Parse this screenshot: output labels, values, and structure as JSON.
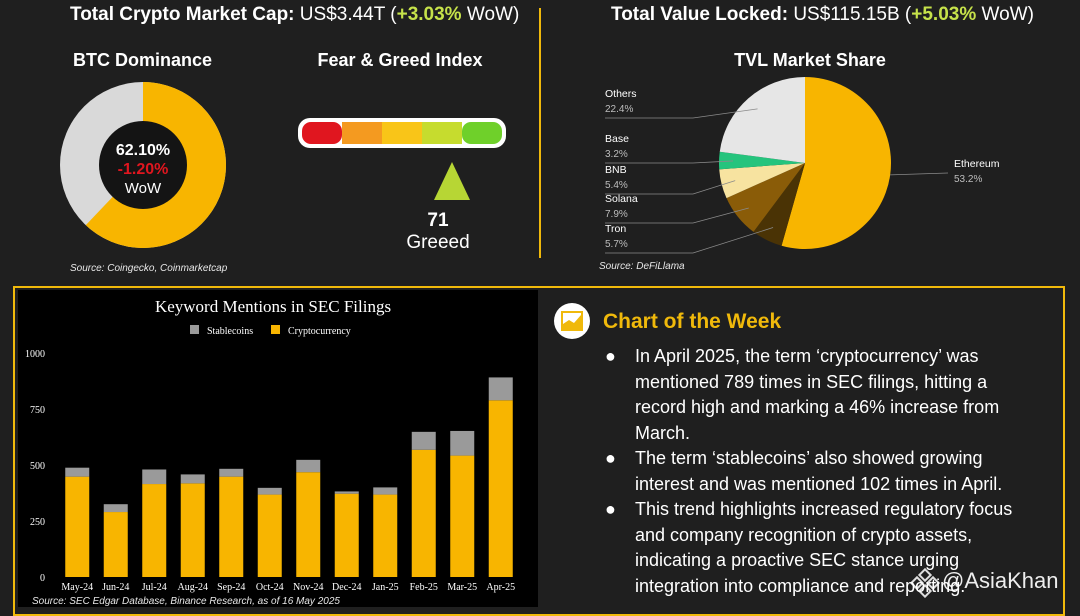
{
  "header": {
    "left": {
      "label": "Total Crypto Market Cap:",
      "value": "US$3.44T",
      "open": " (",
      "change": "+3.03%",
      "suffix": " WoW)"
    },
    "right": {
      "label": "Total Value Locked:",
      "value": "US$115.15B",
      "open": " (",
      "change": "+5.03%",
      "suffix": " WoW)"
    }
  },
  "btc_dominance": {
    "title": "BTC Dominance",
    "value": "62.10%",
    "change": "-1.20%",
    "change_label": "WoW",
    "share": 62.1
  },
  "fear_greed": {
    "title": "Fear & Greed Index",
    "value": "71",
    "label": "Greeed",
    "index": 71,
    "colors": [
      "#e0161f",
      "#f49a20",
      "#f9c518",
      "#c6dc2e",
      "#6fd02a"
    ]
  },
  "top_source_left": "Source: Coingecko, Coinmarketcap",
  "tvl_share": {
    "title": "TVL Market Share",
    "source": "Source: DeFiLlama"
  },
  "chart_of_week": {
    "title": "Chart of the Week",
    "bullets": [
      "In April 2025, the term ‘cryptocurrency’ was mentioned 789 times in SEC filings, hitting a record high and marking a 46% increase from March.",
      "The term ‘stablecoins’ also showed growing interest and was mentioned 102 times in April.",
      "This trend highlights increased regulatory focus and company recognition of crypto assets, indicating a proactive SEC stance urging integration into compliance and reporting."
    ],
    "bullet_symbol": "●"
  },
  "bottom_source": "Source: SEC Edgar Database, Binance Research, as of 16 May 2025",
  "watermark": "@AsiaKhan",
  "chart_data": [
    {
      "type": "pie",
      "title": "TVL Market Share",
      "categories": [
        "Ethereum",
        "Tron",
        "Solana",
        "BNB",
        "Base",
        "Others"
      ],
      "values": [
        53.2,
        5.7,
        7.9,
        5.4,
        3.2,
        22.4
      ],
      "labels": [
        "53.2%",
        "5.7%",
        "7.9%",
        "5.4%",
        "3.2%",
        "22.4%"
      ],
      "colors": [
        "#f8b500",
        "#4a3305",
        "#8a5c08",
        "#f7e3a0",
        "#25c47d",
        "#e6e6e6"
      ]
    },
    {
      "type": "bar",
      "stacked": true,
      "title": "Keyword Mentions in SEC Filings",
      "categories": [
        "May-24",
        "Jun-24",
        "Jul-24",
        "Aug-24",
        "Sep-24",
        "Oct-24",
        "Nov-24",
        "Dec-24",
        "Jan-25",
        "Feb-25",
        "Mar-25",
        "Apr-25"
      ],
      "series": [
        {
          "name": "Cryptocurrency",
          "color": "#f8b500",
          "values": [
            448,
            290,
            415,
            418,
            448,
            368,
            468,
            372,
            368,
            568,
            542,
            789
          ]
        },
        {
          "name": "Stablecoins",
          "color": "#9a9a9a",
          "values": [
            40,
            35,
            65,
            40,
            35,
            30,
            55,
            10,
            32,
            80,
            110,
            102
          ]
        }
      ],
      "legend": [
        "Stablecoins",
        "Cryptocurrency"
      ],
      "yticks": [
        "0",
        "250",
        "500",
        "750",
        "1000"
      ],
      "ylim": [
        0,
        1000
      ]
    }
  ]
}
